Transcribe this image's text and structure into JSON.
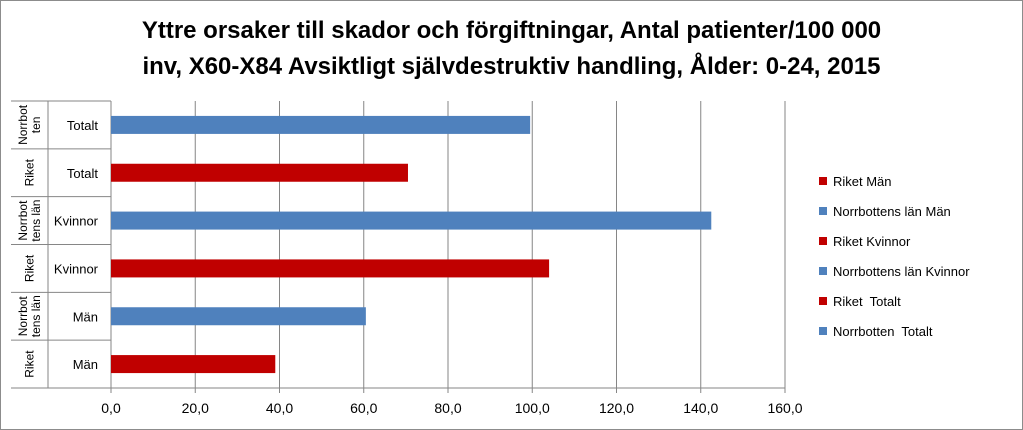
{
  "chart_data": {
    "type": "bar",
    "orientation": "horizontal",
    "title_lines": [
      "Yttre orsaker till skador och förgiftningar, Antal patienter/100 000",
      "inv, X60-X84 Avsiktligt självdestruktiv handling, Ålder: 0-24, 2015"
    ],
    "xlim": [
      0,
      160
    ],
    "x_ticks": [
      "0,0",
      "20,0",
      "40,0",
      "60,0",
      "80,0",
      "100,0",
      "120,0",
      "140,0",
      "160,0"
    ],
    "grid": "vertical",
    "legend_position": "right",
    "categories": [
      {
        "group": "Norrbot ten",
        "label": "Totalt",
        "value": 99.5,
        "color": "#4F81BD"
      },
      {
        "group": "Riket",
        "label": "Totalt",
        "value": 70.5,
        "color": "#C00000"
      },
      {
        "group": "Norrbot tens län",
        "label": "Kvinnor",
        "value": 142.5,
        "color": "#4F81BD"
      },
      {
        "group": "Riket",
        "label": "Kvinnor",
        "value": 104,
        "color": "#C00000"
      },
      {
        "group": "Norrbot tens län",
        "label": "Män",
        "value": 60.5,
        "color": "#4F81BD"
      },
      {
        "group": "Riket",
        "label": "Män",
        "value": 39,
        "color": "#C00000"
      }
    ],
    "legend": [
      {
        "name": "Riket Män",
        "color": "#C00000"
      },
      {
        "name": "Norrbottens län Män",
        "color": "#4F81BD"
      },
      {
        "name": "Riket Kvinnor",
        "color": "#C00000"
      },
      {
        "name": "Norrbottens län Kvinnor",
        "color": "#4F81BD"
      },
      {
        "name": "Riket  Totalt",
        "color": "#C00000"
      },
      {
        "name": "Norrbotten  Totalt",
        "color": "#4F81BD"
      }
    ]
  }
}
